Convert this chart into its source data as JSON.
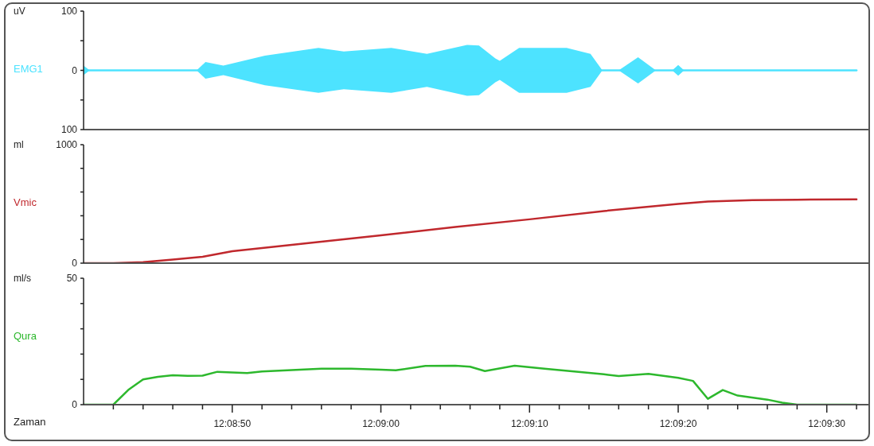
{
  "chart_data": [
    {
      "type": "line",
      "ylabel": "uV",
      "xlim": [
        12.144444,
        12.159111
      ],
      "ylim": [
        -100,
        100
      ],
      "yticks": [
        {
          "value": -100,
          "label": "100"
        },
        {
          "value": -50,
          "label": null
        },
        0,
        {
          "value": 50,
          "label": null
        },
        100
      ],
      "tick_labels": "y",
      "series": [
        {
          "name": "EMG1",
          "color": "#4de3ff",
          "x": [
            12.144444,
            12.144556,
            12.146556,
            12.146722,
            12.147056,
            12.147833,
            12.148833,
            12.149306,
            12.150194,
            12.150861,
            12.151611,
            12.151833,
            12.152139,
            12.152222,
            12.152583,
            12.153472,
            12.153917,
            12.154139,
            12.154444,
            12.154806,
            12.155139,
            12.155444,
            12.155556,
            12.155667,
            12.158889
          ],
          "values": [
            0,
            0,
            0,
            0,
            0,
            0,
            0,
            0,
            0,
            0,
            0,
            0,
            0,
            0,
            0,
            0,
            0,
            0,
            0,
            0,
            0,
            0,
            0,
            0,
            0
          ],
          "lower": [
            -8,
            0,
            0,
            -14,
            -8,
            -25,
            -38,
            -32,
            -38,
            -28,
            -43,
            -42,
            -20,
            -16,
            -38,
            -38,
            -28,
            0,
            0,
            -22,
            0,
            0,
            -9,
            0,
            0
          ],
          "upper": [
            8,
            0,
            0,
            14,
            8,
            25,
            38,
            32,
            38,
            28,
            43,
            42,
            20,
            16,
            38,
            38,
            28,
            0,
            0,
            22,
            0,
            0,
            9,
            0,
            0
          ]
        }
      ]
    },
    {
      "type": "line",
      "ylabel": "ml",
      "xlim": [
        12.144444,
        12.159111
      ],
      "ylim": [
        0,
        1000
      ],
      "yticks": [
        0,
        {
          "value": 200,
          "label": null
        },
        {
          "value": 400,
          "label": null
        },
        {
          "value": 600,
          "label": null
        },
        {
          "value": 800,
          "label": null
        },
        1000
      ],
      "tick_labels": "y",
      "series": [
        {
          "name": "Vmic",
          "color": "#c0282d",
          "x": [
            12.144444,
            12.145,
            12.145556,
            12.146111,
            12.146667,
            12.147222,
            12.148611,
            12.15,
            12.151389,
            12.152778,
            12.154167,
            12.155556,
            12.156111,
            12.156944,
            12.157778,
            12.158889
          ],
          "values": [
            0,
            0,
            8,
            30,
            53,
            100,
            168,
            235,
            305,
            370,
            440,
            500,
            520,
            532,
            536,
            538
          ]
        }
      ]
    },
    {
      "type": "line",
      "ylabel": "ml/s",
      "xlabel": "Zaman",
      "xlim": [
        12.144444,
        12.159111
      ],
      "ylim": [
        0,
        50
      ],
      "yticks": [
        0,
        {
          "value": 10,
          "label": null
        },
        {
          "value": 20,
          "label": null
        },
        {
          "value": 30,
          "label": null
        },
        {
          "value": 40,
          "label": null
        },
        50
      ],
      "xticks": [
        {
          "value": 12.145,
          "label": null
        },
        {
          "value": 12.145556,
          "label": null
        },
        {
          "value": 12.146111,
          "label": null
        },
        {
          "value": 12.146667,
          "label": null
        },
        {
          "value": 12.147222,
          "label": "12:08:50"
        },
        {
          "value": 12.147778,
          "label": null
        },
        {
          "value": 12.148333,
          "label": null
        },
        {
          "value": 12.148889,
          "label": null
        },
        {
          "value": 12.149444,
          "label": null
        },
        {
          "value": 12.15,
          "label": "12:09:00"
        },
        {
          "value": 12.150556,
          "label": null
        },
        {
          "value": 12.151111,
          "label": null
        },
        {
          "value": 12.151667,
          "label": null
        },
        {
          "value": 12.152222,
          "label": null
        },
        {
          "value": 12.152778,
          "label": "12:09:10"
        },
        {
          "value": 12.153333,
          "label": null
        },
        {
          "value": 12.153889,
          "label": null
        },
        {
          "value": 12.154444,
          "label": null
        },
        {
          "value": 12.155,
          "label": null
        },
        {
          "value": 12.155556,
          "label": "12:09:20"
        },
        {
          "value": 12.156111,
          "label": null
        },
        {
          "value": 12.156667,
          "label": null
        },
        {
          "value": 12.157222,
          "label": null
        },
        {
          "value": 12.157778,
          "label": null
        },
        {
          "value": 12.158333,
          "label": "12:09:30"
        },
        {
          "value": 12.158889,
          "label": null
        }
      ],
      "series": [
        {
          "name": "Qura",
          "color": "#2db82d",
          "x": [
            12.144444,
            12.145,
            12.145278,
            12.145556,
            12.145833,
            12.146111,
            12.146389,
            12.146667,
            12.146944,
            12.147222,
            12.1475,
            12.147778,
            12.148333,
            12.148889,
            12.149444,
            12.15,
            12.150278,
            12.150833,
            12.151389,
            12.151667,
            12.151944,
            12.1525,
            12.153056,
            12.153611,
            12.154167,
            12.154444,
            12.155,
            12.155556,
            12.155833,
            12.156111,
            12.156389,
            12.156667,
            12.157222,
            12.1575,
            12.157778,
            12.158889
          ],
          "values": [
            0,
            0,
            5.8,
            10,
            11,
            11.6,
            11.4,
            11.5,
            13,
            12.7,
            12.5,
            13.1,
            13.7,
            14.2,
            14.2,
            13.8,
            13.6,
            15.3,
            15.4,
            15,
            13.3,
            15.4,
            14.2,
            13.1,
            12,
            11.3,
            12.2,
            10.6,
            9.4,
            2.3,
            5.8,
            3.6,
            2,
            0.8,
            0,
            0
          ]
        }
      ]
    }
  ]
}
